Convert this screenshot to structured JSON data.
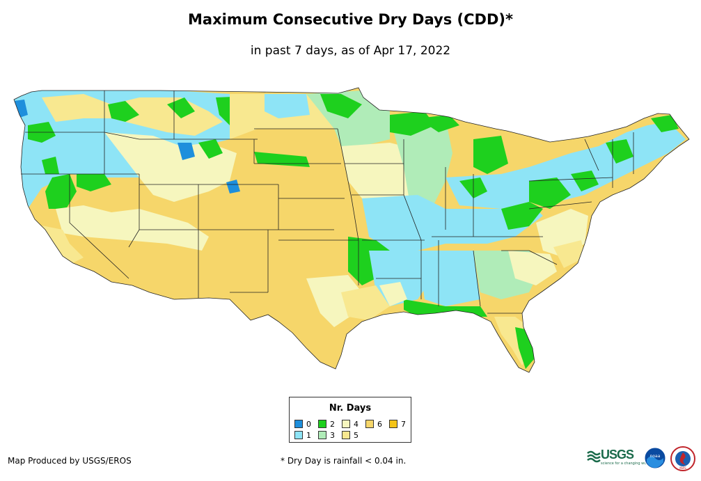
{
  "header": {
    "title": "Maximum Consecutive Dry Days (CDD)*",
    "subtitle": "in past 7 days, as of Apr 17, 2022"
  },
  "legend": {
    "title": "Nr. Days",
    "items": [
      {
        "label": "0",
        "color": "#1e8fdc"
      },
      {
        "label": "1",
        "color": "#8ee4f6"
      },
      {
        "label": "2",
        "color": "#1ed01e"
      },
      {
        "label": "3",
        "color": "#b0ecb8"
      },
      {
        "label": "4",
        "color": "#f6f6be"
      },
      {
        "label": "5",
        "color": "#f8e890"
      },
      {
        "label": "6",
        "color": "#f6d66a"
      },
      {
        "label": "7",
        "color": "#f4c418"
      }
    ]
  },
  "footer": {
    "producer": "Map Produced by USGS/EROS",
    "note": "* Dry Day is rainfall < 0.04 in."
  },
  "logos": {
    "usgs": "USGS",
    "usgs_tagline": "science for a changing world",
    "noaa": "noaa",
    "nws": "NWS"
  }
}
